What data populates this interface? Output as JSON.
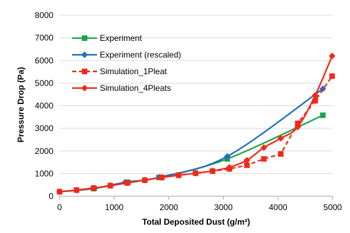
{
  "chart_data": {
    "type": "line",
    "xlabel": "Total Deposited Dust (g/m²)",
    "ylabel": "Pressure Drop (Pa)",
    "xlim": [
      0,
      5000
    ],
    "ylim": [
      0,
      8000
    ],
    "xticks": [
      0,
      1000,
      2000,
      3000,
      4000,
      5000
    ],
    "yticks": [
      0,
      1000,
      2000,
      3000,
      4000,
      5000,
      6000,
      7000,
      8000
    ],
    "grid": true,
    "legend_position": "top-left",
    "series": [
      {
        "name": "Experiment",
        "color": "#1fa34a",
        "marker": "square",
        "line_style": "solid",
        "smooth": true,
        "x": [
          0,
          630,
          1250,
          1820,
          3070,
          4820
        ],
        "y": [
          200,
          340,
          620,
          830,
          1650,
          3580
        ]
      },
      {
        "name": "Experiment (rescaled)",
        "color": "#1f6fc0",
        "marker": "diamond",
        "line_style": "solid",
        "smooth": true,
        "x": [
          0,
          640,
          1200,
          1830,
          3070,
          4820
        ],
        "y": [
          200,
          350,
          620,
          840,
          1760,
          4750
        ]
      },
      {
        "name": "Simulation_1Pleat",
        "color": "#ee2a1a",
        "marker": "square",
        "line_style": "dashed",
        "smooth": false,
        "x": [
          0,
          310,
          620,
          930,
          1240,
          1560,
          1870,
          2180,
          2490,
          2800,
          3110,
          3430,
          3740,
          4050,
          4360,
          4680,
          4990
        ],
        "y": [
          200,
          270,
          360,
          470,
          590,
          710,
          830,
          930,
          1020,
          1110,
          1210,
          1370,
          1650,
          1870,
          3220,
          4220,
          5310
        ]
      },
      {
        "name": "Simulation_4Pleats",
        "color": "#ee2a1a",
        "marker": "diamond",
        "line_style": "solid",
        "smooth": true,
        "x": [
          0,
          310,
          620,
          930,
          1240,
          1560,
          1870,
          2180,
          2490,
          2800,
          3110,
          3430,
          3740,
          4050,
          4360,
          4680,
          4990
        ],
        "y": [
          200,
          270,
          360,
          470,
          590,
          710,
          830,
          930,
          1020,
          1120,
          1280,
          1590,
          2150,
          2560,
          3060,
          4460,
          6200
        ]
      }
    ]
  }
}
